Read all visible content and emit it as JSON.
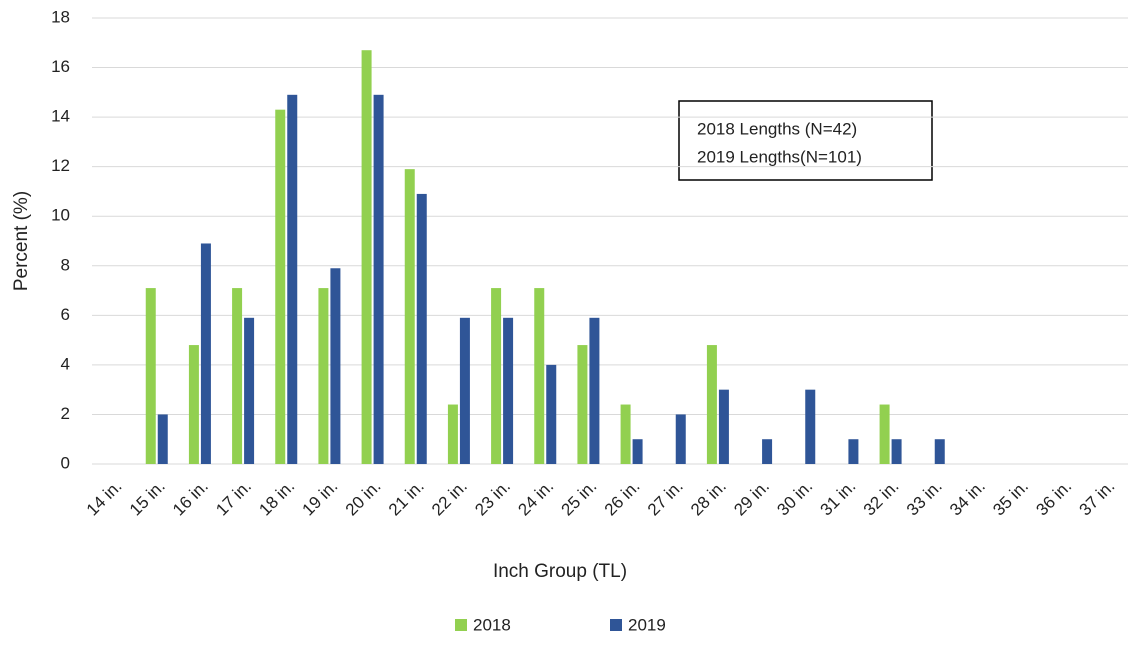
{
  "chart_data": {
    "type": "bar",
    "categories": [
      "14 in.",
      "15 in.",
      "16 in.",
      "17 in.",
      "18 in.",
      "19 in.",
      "20 in.",
      "21 in.",
      "22 in.",
      "23 in.",
      "24 in.",
      "25 in.",
      "26 in.",
      "27 in.",
      "28 in.",
      "29 in.",
      "30 in.",
      "31 in.",
      "32 in.",
      "33 in.",
      "34 in.",
      "35 in.",
      "36 in.",
      "37 in."
    ],
    "series": [
      {
        "name": "2018",
        "color": "#92d050",
        "values": [
          0,
          7.1,
          4.8,
          7.1,
          14.3,
          7.1,
          16.7,
          11.9,
          2.4,
          7.1,
          7.1,
          4.8,
          2.4,
          0,
          4.8,
          0,
          0,
          0,
          2.4,
          0,
          0,
          0,
          0,
          0
        ]
      },
      {
        "name": "2019",
        "color": "#2f5597",
        "values": [
          0,
          2,
          8.9,
          5.9,
          14.9,
          7.9,
          14.9,
          10.9,
          5.9,
          5.9,
          4,
          5.9,
          1,
          2,
          3,
          1,
          3,
          1,
          1,
          1,
          0,
          0,
          0,
          0
        ]
      }
    ],
    "ylim": [
      0,
      18
    ],
    "yticks": [
      0,
      2,
      4,
      6,
      8,
      10,
      12,
      14,
      16,
      18
    ],
    "grid": true,
    "xlabel": "Inch Group (TL)",
    "ylabel": "Percent (%)",
    "annotations": [
      "2018 Lengths (N=42)",
      "2019 Lengths(N=101)"
    ],
    "legend": "bottom"
  }
}
